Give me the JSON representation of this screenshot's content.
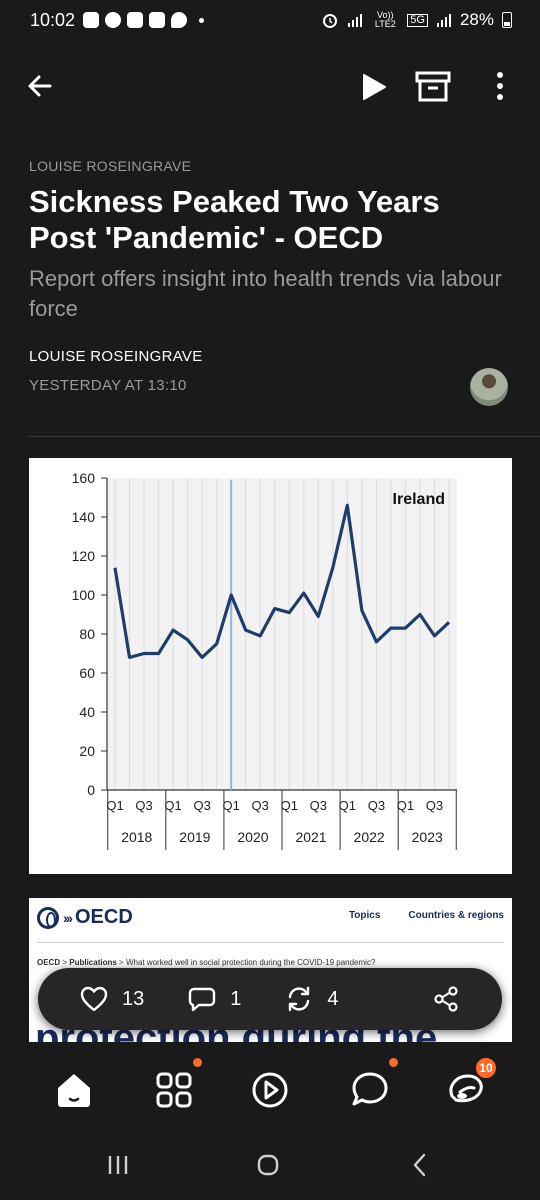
{
  "status_bar": {
    "time": "10:02",
    "network": "5G",
    "volte": "Vo)) LTE2",
    "battery": "28%"
  },
  "app_bar": {
    "back_icon": "arrow-left-icon",
    "play_icon": "play-icon",
    "archive_icon": "archive-icon",
    "more_icon": "more-vertical-icon"
  },
  "article": {
    "author_top": "LOUISE ROSEINGRAVE",
    "headline": "Sickness Peaked Two Years Post 'Pandemic' - OECD",
    "subtitle": "Report offers insight into health trends via labour force",
    "byline": "LOUISE ROSEINGRAVE",
    "dateline": "YESTERDAY AT 13:10"
  },
  "chart_data": {
    "type": "line",
    "title": "Ireland",
    "ylim": [
      0,
      160
    ],
    "yticks": [
      0,
      20,
      40,
      60,
      80,
      100,
      120,
      140,
      160
    ],
    "quarter_labels": [
      "Q1",
      "Q3",
      "Q1",
      "Q3",
      "Q1",
      "Q3",
      "Q1",
      "Q3",
      "Q1",
      "Q3",
      "Q1",
      "Q3"
    ],
    "years": [
      "2018",
      "2019",
      "2020",
      "2021",
      "2022",
      "2023"
    ],
    "x": [
      "2018Q1",
      "2018Q2",
      "2018Q3",
      "2018Q4",
      "2019Q1",
      "2019Q2",
      "2019Q3",
      "2019Q4",
      "2020Q1",
      "2020Q2",
      "2020Q3",
      "2020Q4",
      "2021Q1",
      "2021Q2",
      "2021Q3",
      "2021Q4",
      "2022Q1",
      "2022Q2",
      "2022Q3",
      "2022Q4",
      "2023Q1",
      "2023Q2",
      "2023Q3",
      "2023Q4"
    ],
    "series": [
      {
        "values": [
          114,
          68,
          70,
          70,
          82,
          77,
          68,
          75,
          100,
          82,
          79,
          93,
          91,
          101,
          89,
          114,
          146,
          92,
          76,
          83,
          83,
          90,
          79,
          86
        ]
      }
    ],
    "vertical_marker": "2020Q1",
    "grid": true,
    "line_color": "#1f3d6b"
  },
  "embed": {
    "logo_text": "OECD",
    "nav": [
      "Topics",
      "Countries & regions"
    ],
    "breadcrumb_root": "OECD",
    "breadcrumb_section": "Publications",
    "breadcrumb_page": "What worked well in social protection during the COVID-19 pandemic?",
    "title_fragment": "protection during the"
  },
  "action_bar": {
    "likes": "13",
    "comments": "1",
    "restacks": "4"
  },
  "bottom_nav": {
    "chat_badge": "10"
  },
  "colors": {
    "background": "#1a1a1a",
    "accent": "#ff6a2b",
    "muted": "#9a9a9a"
  }
}
